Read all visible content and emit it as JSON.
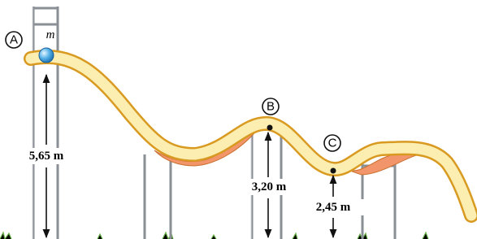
{
  "mass_label": "m",
  "points": [
    {
      "label": "A",
      "height": "5,65 m"
    },
    {
      "label": "B",
      "height": "3,20 m"
    },
    {
      "label": "C",
      "height": "2,45 m"
    }
  ]
}
